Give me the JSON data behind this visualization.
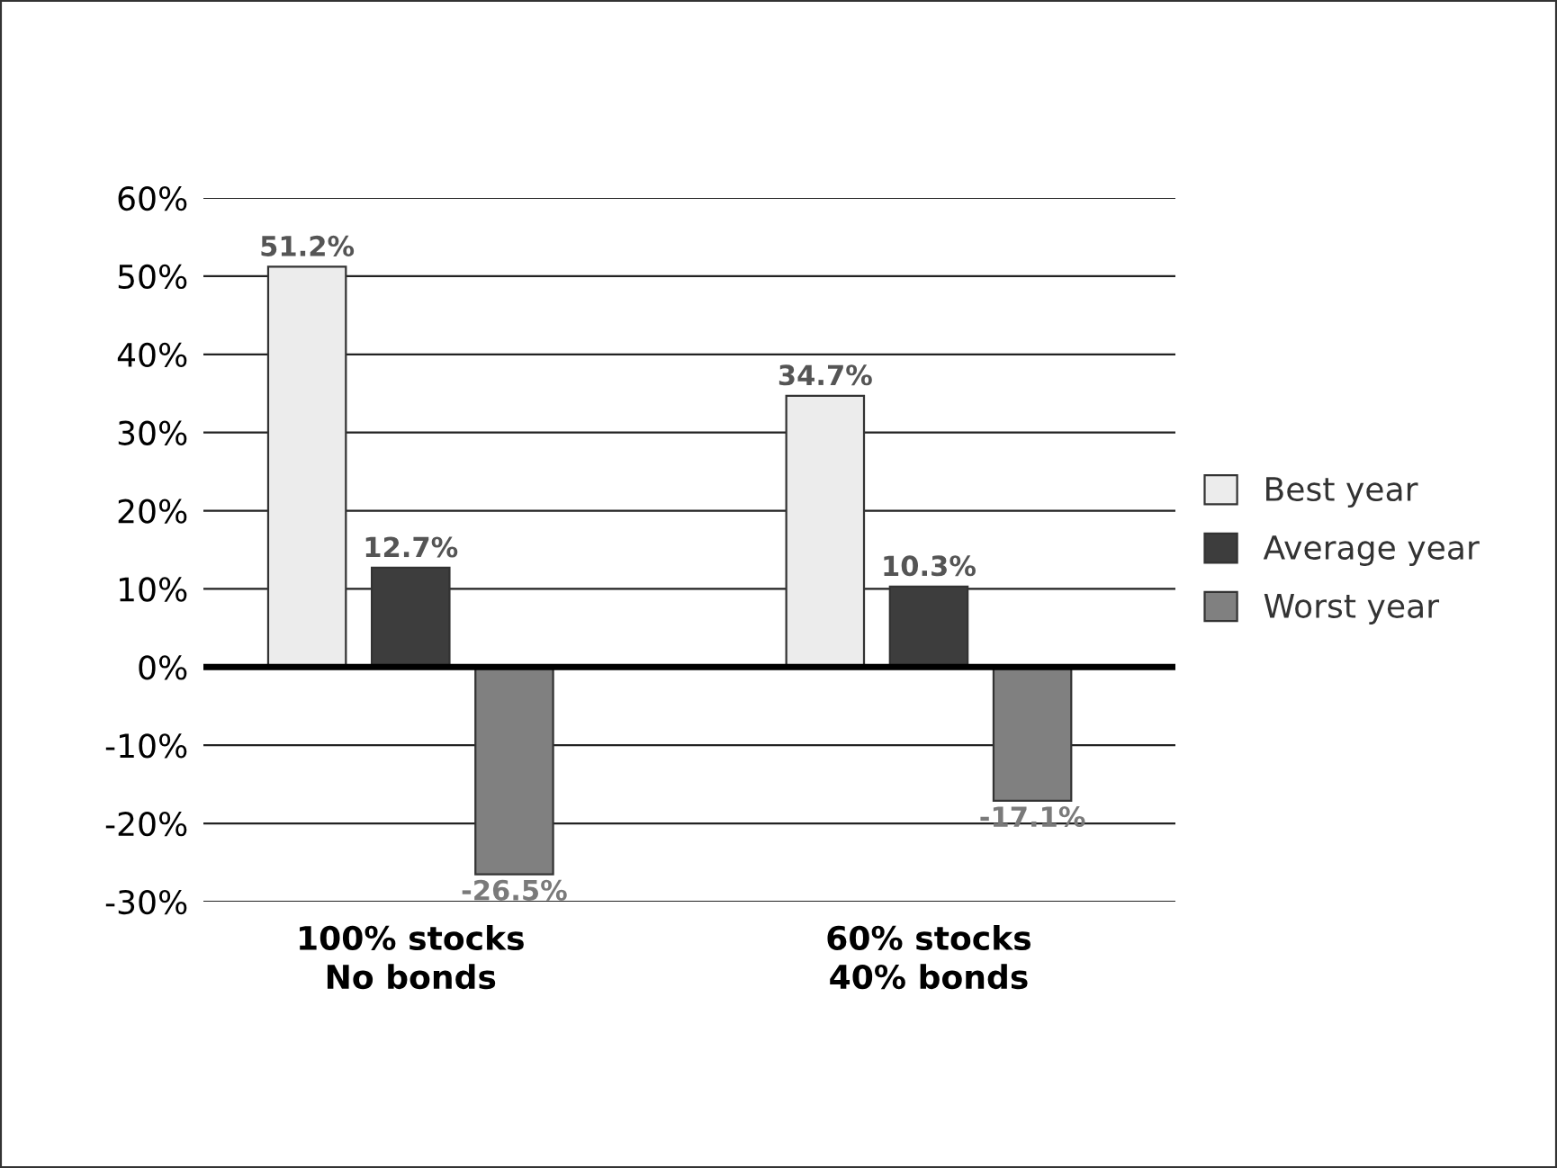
{
  "chart_data": {
    "type": "bar",
    "categories": [
      "100% stocks\nNo bonds",
      "60% stocks\n40% bonds"
    ],
    "series": [
      {
        "name": "Best year",
        "color": "#ececec",
        "values": [
          51.2,
          34.7
        ],
        "value_labels": [
          "51.2%",
          "34.7%"
        ]
      },
      {
        "name": "Average year",
        "color": "#3d3d3d",
        "values": [
          12.7,
          10.3
        ],
        "value_labels": [
          "12.7%",
          "10.3%"
        ]
      },
      {
        "name": "Worst year",
        "color": "#808080",
        "values": [
          -26.5,
          -17.1
        ],
        "value_labels": [
          "-26.5%",
          "-17.1%"
        ]
      }
    ],
    "ylim": [
      -30,
      60
    ],
    "yticks": [
      {
        "value": -30,
        "label": "-30%"
      },
      {
        "value": -20,
        "label": "-20%"
      },
      {
        "value": -10,
        "label": "-10%"
      },
      {
        "value": 0,
        "label": "0%"
      },
      {
        "value": 10,
        "label": "10%"
      },
      {
        "value": 20,
        "label": "20%"
      },
      {
        "value": 30,
        "label": "30%"
      },
      {
        "value": 40,
        "label": "40%"
      },
      {
        "value": 50,
        "label": "50%"
      },
      {
        "value": 60,
        "label": "60%"
      }
    ],
    "grid": "y",
    "legend": "right"
  }
}
